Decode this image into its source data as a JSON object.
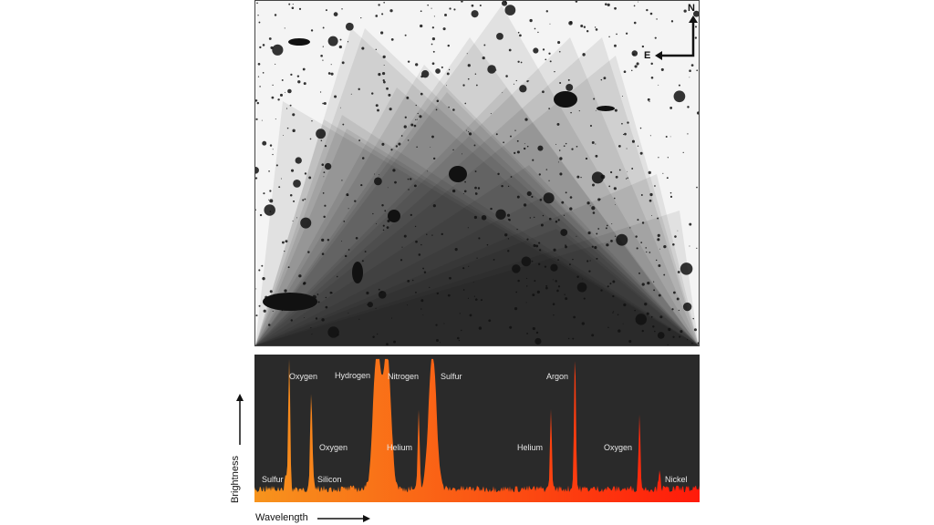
{
  "compass": {
    "north": "N",
    "east": "E"
  },
  "axes": {
    "y_label": "Brightness",
    "x_label": "Wavelength"
  },
  "chart_data": {
    "type": "area",
    "title": "",
    "xlabel": "Wavelength",
    "ylabel": "Brightness",
    "xlim": [
      0,
      1
    ],
    "ylim": [
      0,
      1
    ],
    "colors": {
      "start": "#f7941d",
      "end": "#ff1a0a",
      "background": "#2a2a2a"
    },
    "peaks": [
      {
        "label": "Sulfur",
        "x": 0.07,
        "height": 0.12
      },
      {
        "label": "Oxygen",
        "x": 0.078,
        "height": 0.95
      },
      {
        "label": "Oxygen",
        "x": 0.127,
        "height": 0.6
      },
      {
        "label": "Silicon",
        "x": 0.13,
        "height": 0.18
      },
      {
        "label": "Hydrogen",
        "x": 0.275,
        "height": 1.0
      },
      {
        "label": "Nitrogen",
        "x": 0.298,
        "height": 1.0
      },
      {
        "label": "Helium",
        "x": 0.369,
        "height": 0.55
      },
      {
        "label": "Sulfur",
        "x": 0.4,
        "height": 1.0
      },
      {
        "label": "Helium",
        "x": 0.666,
        "height": 0.55
      },
      {
        "label": "Argon",
        "x": 0.72,
        "height": 0.97
      },
      {
        "label": "Oxygen",
        "x": 0.865,
        "height": 0.52
      },
      {
        "label": "Nickel",
        "x": 0.91,
        "height": 0.15
      }
    ]
  }
}
